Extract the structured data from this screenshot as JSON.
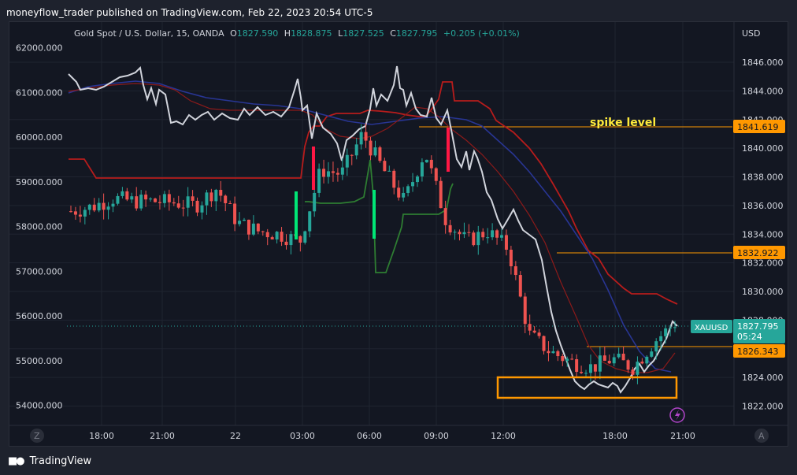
{
  "header": {
    "published_text": "moneyflow_trader published on TradingView.com, Feb 22, 2023 20:54 UTC-5"
  },
  "symbol": {
    "name": "Gold Spot / U.S. Dollar, 15, OANDA",
    "o_label": "O",
    "o_value": "1827.590",
    "h_label": "H",
    "h_value": "1828.875",
    "l_label": "L",
    "l_value": "1827.525",
    "c_label": "C",
    "c_value": "1827.795",
    "change": "+0.205 (+0.01%)"
  },
  "axes": {
    "currency": "USD",
    "right_ticks": [
      "1846.000",
      "1844.000",
      "1842.000",
      "1840.000",
      "1838.000",
      "1836.000",
      "1834.000",
      "1832.000",
      "1830.000",
      "1828.000",
      "1826.000",
      "1824.000",
      "1822.000"
    ],
    "left_ticks": [
      "62000.000",
      "61000.000",
      "60000.000",
      "59000.000",
      "58000.000",
      "57000.000",
      "56000.000",
      "55000.000",
      "54000.000"
    ],
    "time_ticks": [
      "18:00",
      "21:00",
      "22",
      "03:00",
      "06:00",
      "09:00",
      "12:00",
      "18:00",
      "21:00"
    ],
    "z_button": "Z",
    "a_button": "A"
  },
  "labels": {
    "spike_level_text": "spike level",
    "spike_level_price": "1841.619",
    "level_2": "1832.922",
    "level_3": "1826.343",
    "ticker": "XAUUSD",
    "last_price": "1827.795",
    "countdown": "05:24"
  },
  "colors": {
    "up": "#26a69a",
    "down": "#ef5350",
    "level": "#ff9800",
    "spike_text": "#ffeb3b",
    "wma": "#d1d4dc",
    "env_upper": "#b71c1c",
    "env_lower": "#2e7d32",
    "ma_blue": "#283593"
  },
  "footer": {
    "brand": "TradingView"
  },
  "chart_data": {
    "type": "line",
    "title": "Gold Spot / U.S. Dollar, 15, OANDA",
    "y_right_range": [
      1821,
      1848
    ],
    "y_left_range": [
      53800,
      62300
    ],
    "series": [
      {
        "name": "Gold Spot / U.S. Dollar",
        "x": [
          "18:00",
          "19:00",
          "20:00",
          "21:00",
          "23:00",
          "01:00",
          "02:00",
          "03:00",
          "03:30",
          "04:00",
          "05:00",
          "06:00",
          "06:30",
          "07:00",
          "07:30",
          "08:00",
          "09:00",
          "09:30",
          "10:00",
          "11:00",
          "12:00",
          "13:00",
          "14:00",
          "15:00",
          "16:00",
          "17:00",
          "18:00",
          "19:00",
          "20:00",
          "20:54"
        ],
        "values": [
          1835.6,
          1835.9,
          1836.5,
          1836.3,
          1836.3,
          1836.2,
          1836.0,
          1837.2,
          1834.8,
          1834.2,
          1834.0,
          1833.5,
          1838.5,
          1838.2,
          1841.0,
          1838.5,
          1836.3,
          1839.8,
          1835.0,
          1833.5,
          1834.2,
          1833.0,
          1827.0,
          1825.8,
          1825.1,
          1824.7,
          1825.3,
          1824.7,
          1826.5,
          1827.8
        ]
      },
      {
        "name": "",
        "x": [
          "17:00",
          "18:00",
          "19:00",
          "20:00",
          "21:00",
          "22:00",
          "23:00",
          "00:00",
          "01:00",
          "02:00",
          "03:00",
          "04:00",
          "05:00",
          "06:00",
          "07:00",
          "08:00",
          "09:00",
          "10:00",
          "11:00",
          "12:00",
          "13:00",
          "14:00",
          "15:00",
          "16:00",
          "17:00",
          "18:00",
          "19:00",
          "20:00",
          "21:00"
        ],
        "values": [
          1846.0,
          1845.5,
          1845.2,
          1845.4,
          1845.0,
          1844.5,
          1844.2,
          1843.9,
          1844.3,
          1844.0,
          1845.2,
          1843.8,
          1842.5,
          1841.5,
          1845.5,
          1843.5,
          1842.0,
          1840.8,
          1841.0,
          1840.0,
          1836.0,
          1832.5,
          1825.7,
          1824.6,
          1824.5,
          1824.6,
          1825.0,
          1826.0,
          1827.5
        ]
      }
    ]
  }
}
